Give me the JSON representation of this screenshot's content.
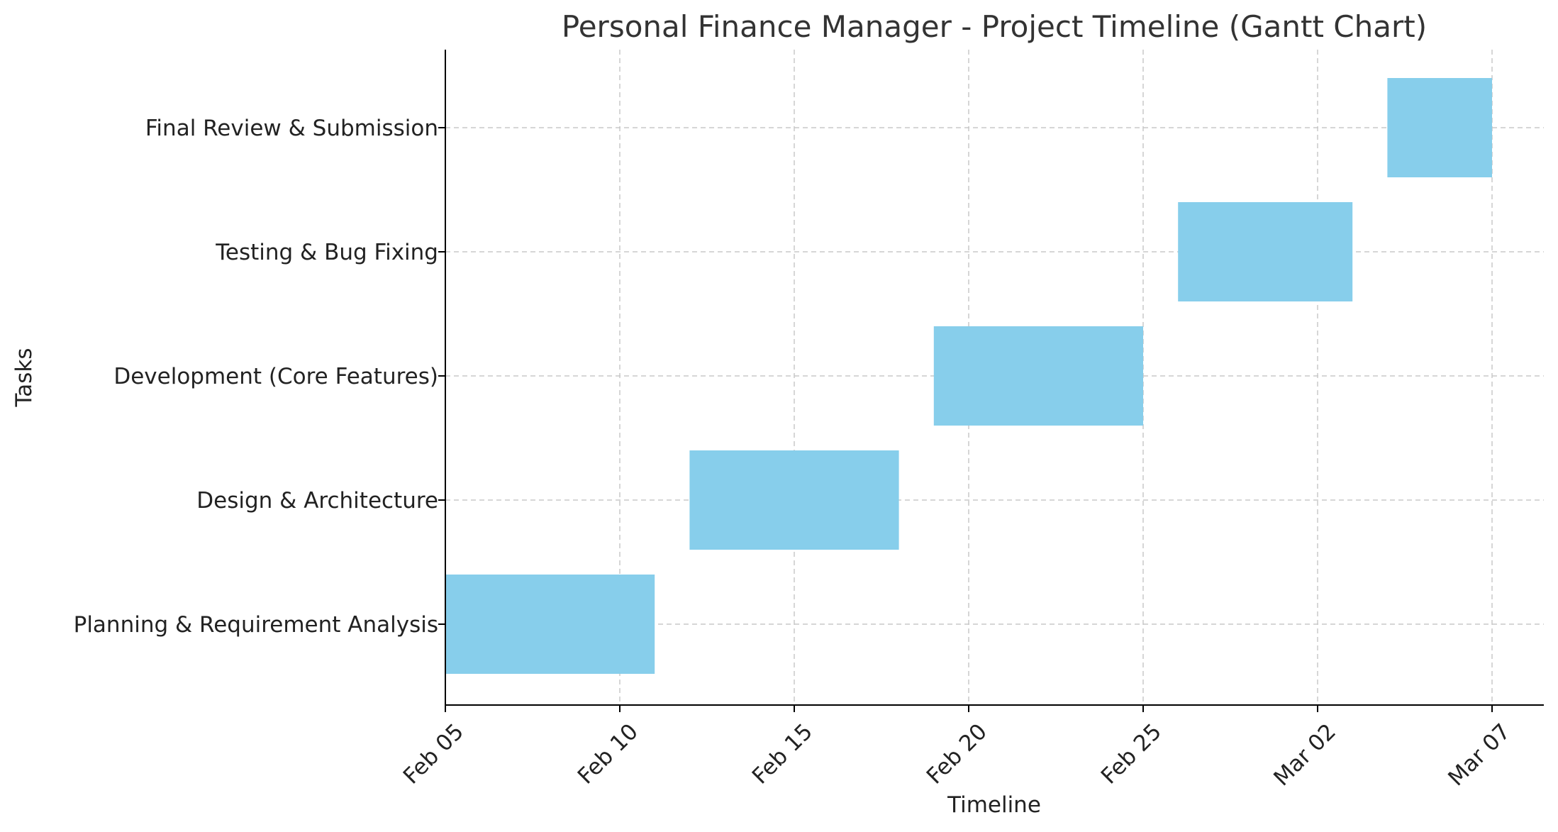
{
  "chart_data": {
    "type": "gantt",
    "title": "Personal Finance Manager - Project Timeline (Gantt Chart)",
    "xlabel": "Timeline",
    "ylabel": "Tasks",
    "bar_color": "#87CEEB",
    "grid": true,
    "xlim": [
      "2025-02-05",
      "2025-03-08"
    ],
    "xticks": [
      {
        "date": "2025-02-05",
        "label": "Feb 05"
      },
      {
        "date": "2025-02-10",
        "label": "Feb 10"
      },
      {
        "date": "2025-02-15",
        "label": "Feb 15"
      },
      {
        "date": "2025-02-20",
        "label": "Feb 20"
      },
      {
        "date": "2025-02-25",
        "label": "Feb 25"
      },
      {
        "date": "2025-03-02",
        "label": "Mar 02"
      },
      {
        "date": "2025-03-07",
        "label": "Mar 07"
      }
    ],
    "tasks": [
      {
        "name": "Planning & Requirement Analysis",
        "start": "2025-02-05",
        "end": "2025-02-11"
      },
      {
        "name": "Design & Architecture",
        "start": "2025-02-12",
        "end": "2025-02-18"
      },
      {
        "name": "Development (Core Features)",
        "start": "2025-02-19",
        "end": "2025-02-25"
      },
      {
        "name": "Testing & Bug Fixing",
        "start": "2025-02-26",
        "end": "2025-03-03"
      },
      {
        "name": "Final Review & Submission",
        "start": "2025-03-04",
        "end": "2025-03-07"
      }
    ]
  }
}
